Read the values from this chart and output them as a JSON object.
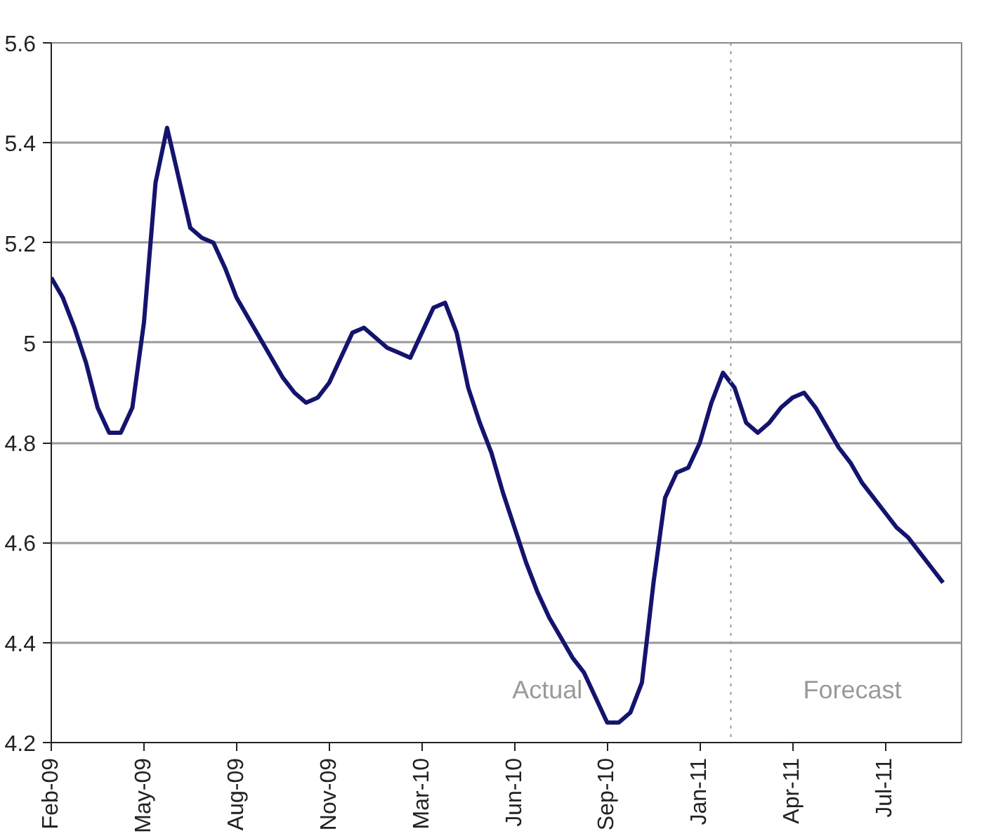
{
  "chart_data": {
    "type": "line",
    "categories": [
      "Feb-09",
      null,
      null,
      null,
      null,
      null,
      null,
      null,
      "May-09",
      null,
      null,
      null,
      null,
      null,
      null,
      null,
      "Aug-09",
      null,
      null,
      null,
      null,
      null,
      null,
      null,
      "Nov-09",
      null,
      null,
      null,
      null,
      null,
      null,
      null,
      "Mar-10",
      null,
      null,
      null,
      null,
      null,
      null,
      null,
      "Jun-10",
      null,
      null,
      null,
      null,
      null,
      null,
      null,
      "Sep-10",
      null,
      null,
      null,
      null,
      null,
      null,
      null,
      "Jan-11",
      null,
      null,
      null,
      null,
      null,
      null,
      null,
      "Apr-11",
      null,
      null,
      null,
      null,
      null,
      null,
      null,
      "Jul-11",
      null,
      null,
      null,
      null,
      null
    ],
    "series": [
      {
        "color": "#14146e",
        "values": [
          5.13,
          5.09,
          5.03,
          4.96,
          4.87,
          4.82,
          4.82,
          4.87,
          5.04,
          5.32,
          5.43,
          5.33,
          5.23,
          5.21,
          5.2,
          5.15,
          5.09,
          5.05,
          5.01,
          4.97,
          4.93,
          4.9,
          4.88,
          4.89,
          4.92,
          4.97,
          5.02,
          5.03,
          5.01,
          4.99,
          4.98,
          4.97,
          5.02,
          5.07,
          5.08,
          5.02,
          4.91,
          4.84,
          4.78,
          4.7,
          4.63,
          4.56,
          4.5,
          4.45,
          4.41,
          4.37,
          4.34,
          4.29,
          4.24,
          4.24,
          4.26,
          4.32,
          4.52,
          4.69,
          4.74,
          4.75,
          4.8,
          4.88,
          4.94,
          4.91,
          4.84,
          4.82,
          4.84,
          4.87,
          4.89,
          4.9,
          4.87,
          4.83,
          4.79,
          4.76,
          4.72,
          4.69,
          4.66,
          4.63,
          4.61,
          4.58,
          4.55,
          4.52
        ]
      }
    ],
    "ylim": [
      4.2,
      5.6
    ],
    "yticks": [
      4.2,
      4.4,
      4.6,
      4.8,
      5,
      5.2,
      5.4,
      5.6
    ],
    "grid": "y",
    "line_style": "solid",
    "annotations": [
      "Actual",
      "Forecast"
    ]
  }
}
